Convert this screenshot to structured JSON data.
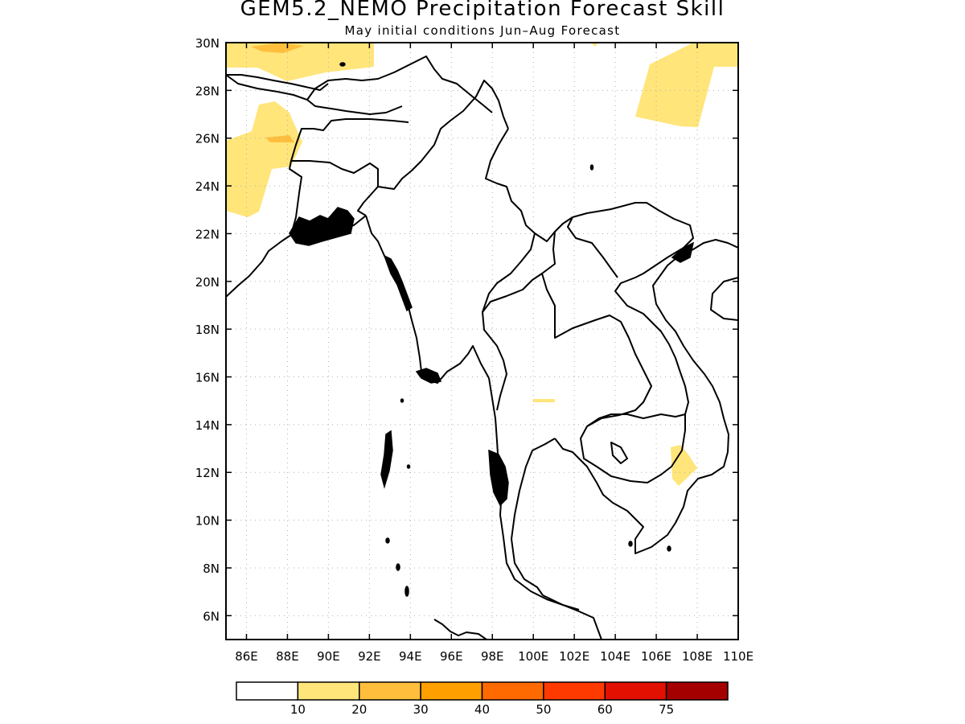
{
  "title": "GEM5.2_NEMO Precipitation Forecast Skill",
  "subtitle": "May initial conditions  Jun–Aug Forecast",
  "lat_ticks": [
    "30N",
    "28N",
    "26N",
    "24N",
    "22N",
    "20N",
    "18N",
    "16N",
    "14N",
    "12N",
    "10N",
    "8N",
    "6N"
  ],
  "lon_ticks": [
    "86E",
    "88E",
    "90E",
    "92E",
    "94E",
    "96E",
    "98E",
    "100E",
    "102E",
    "104E",
    "106E",
    "108E",
    "110E"
  ],
  "colorbar": {
    "labels": [
      "10",
      "20",
      "30",
      "40",
      "50",
      "60",
      "75"
    ],
    "colors": [
      "#ffffff",
      "#ffe57a",
      "#ffbf3c",
      "#ff9f00",
      "#ff6a00",
      "#ff3a00",
      "#e11000",
      "#a50000"
    ]
  },
  "map_extent": {
    "lon": [
      85,
      110
    ],
    "lat": [
      5,
      30
    ]
  },
  "colors": {
    "skill_10_20": "#ffe57a",
    "skill_20_30": "#ffbf3c"
  }
}
